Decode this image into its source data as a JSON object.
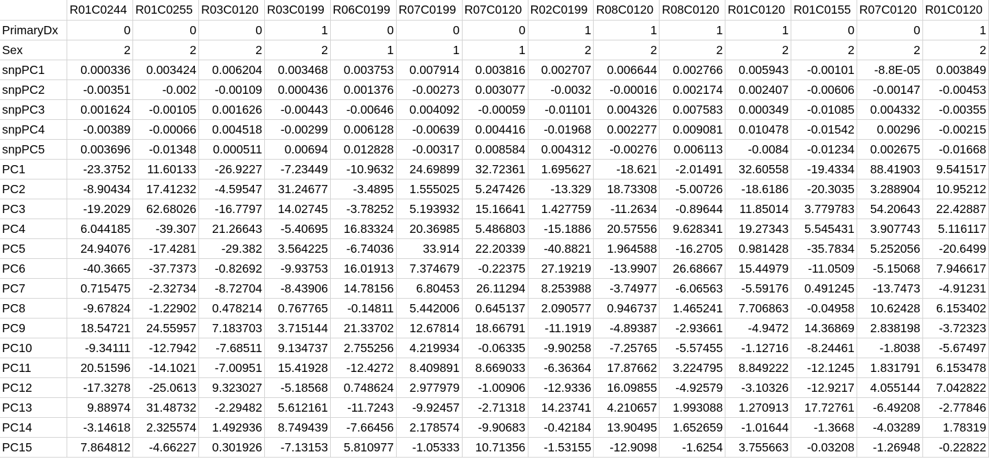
{
  "sheet": {
    "columns": [
      "R01C0244",
      "R01C0255",
      "R03C0120",
      "R03C0199",
      "R06C0199",
      "R07C0199",
      "R07C0120",
      "R02C0199",
      "R08C0120",
      "R08C0120",
      "R01C0120",
      "R01C0155",
      "R07C0120",
      "R01C0120"
    ],
    "rows": [
      {
        "label": "PrimaryDx",
        "values": [
          "0",
          "0",
          "0",
          "1",
          "0",
          "0",
          "0",
          "1",
          "1",
          "1",
          "1",
          "0",
          "0",
          "1"
        ]
      },
      {
        "label": "Sex",
        "values": [
          "2",
          "2",
          "2",
          "2",
          "1",
          "1",
          "1",
          "2",
          "2",
          "2",
          "2",
          "2",
          "2",
          "2"
        ]
      },
      {
        "label": "snpPC1",
        "values": [
          "0.000336",
          "0.003424",
          "0.006204",
          "0.003468",
          "0.003753",
          "0.007914",
          "0.003816",
          "0.002707",
          "0.006644",
          "0.002766",
          "0.005943",
          "-0.00101",
          "-8.8E-05",
          "0.003849"
        ]
      },
      {
        "label": "snpPC2",
        "values": [
          "-0.00351",
          "-0.002",
          "-0.00109",
          "0.000436",
          "0.001376",
          "-0.00273",
          "0.003077",
          "-0.0032",
          "-0.00016",
          "0.002174",
          "0.002407",
          "-0.00606",
          "-0.00147",
          "-0.00453"
        ]
      },
      {
        "label": "snpPC3",
        "values": [
          "0.001624",
          "-0.00105",
          "0.001626",
          "-0.00443",
          "-0.00646",
          "0.004092",
          "-0.00059",
          "-0.01101",
          "0.004326",
          "0.007583",
          "0.000349",
          "-0.01085",
          "0.004332",
          "-0.00355"
        ]
      },
      {
        "label": "snpPC4",
        "values": [
          "-0.00389",
          "-0.00066",
          "0.004518",
          "-0.00299",
          "0.006128",
          "-0.00639",
          "0.004416",
          "-0.01968",
          "0.002277",
          "0.009081",
          "0.010478",
          "-0.01542",
          "0.00296",
          "-0.00215"
        ]
      },
      {
        "label": "snpPC5",
        "values": [
          "0.003696",
          "-0.01348",
          "0.000511",
          "0.00694",
          "0.012828",
          "-0.00317",
          "0.008584",
          "0.004312",
          "-0.00276",
          "0.006113",
          "-0.0084",
          "-0.01234",
          "0.002675",
          "-0.01668"
        ]
      },
      {
        "label": "PC1",
        "values": [
          "-23.3752",
          "11.60133",
          "-26.9227",
          "-7.23449",
          "-10.9632",
          "24.69899",
          "32.72361",
          "1.695627",
          "-18.621",
          "-2.01491",
          "32.60558",
          "-19.4334",
          "88.41903",
          "9.541517"
        ]
      },
      {
        "label": "PC2",
        "values": [
          "-8.90434",
          "17.41232",
          "-4.59547",
          "31.24677",
          "-3.4895",
          "1.555025",
          "5.247426",
          "-13.329",
          "18.73308",
          "-5.00726",
          "-18.6186",
          "-20.3035",
          "3.288904",
          "10.95212"
        ]
      },
      {
        "label": "PC3",
        "values": [
          "-19.2029",
          "62.68026",
          "-16.7797",
          "14.02745",
          "-3.78252",
          "5.193932",
          "15.16641",
          "1.427759",
          "-11.2634",
          "-0.89644",
          "11.85014",
          "3.779783",
          "54.20643",
          "22.42887"
        ]
      },
      {
        "label": "PC4",
        "values": [
          "6.044185",
          "-39.307",
          "21.26643",
          "-5.40695",
          "16.83324",
          "20.36985",
          "5.486803",
          "-15.1886",
          "20.57556",
          "9.628341",
          "19.27343",
          "5.545431",
          "3.907743",
          "5.116117"
        ]
      },
      {
        "label": "PC5",
        "values": [
          "24.94076",
          "-17.4281",
          "-29.382",
          "3.564225",
          "-6.74036",
          "33.914",
          "22.20339",
          "-40.8821",
          "1.964588",
          "-16.2705",
          "0.981428",
          "-35.7834",
          "5.252056",
          "-20.6499"
        ]
      },
      {
        "label": "PC6",
        "values": [
          "-40.3665",
          "-37.7373",
          "-0.82692",
          "-9.93753",
          "16.01913",
          "7.374679",
          "-0.22375",
          "27.19219",
          "-13.9907",
          "26.68667",
          "15.44979",
          "-11.0509",
          "-5.15068",
          "7.946617"
        ]
      },
      {
        "label": "PC7",
        "values": [
          "0.715475",
          "-2.32734",
          "-8.72704",
          "-8.43906",
          "14.78156",
          "6.80453",
          "26.11294",
          "8.253988",
          "-3.74977",
          "-6.06563",
          "-5.59176",
          "0.491245",
          "-13.7473",
          "-4.91231"
        ]
      },
      {
        "label": "PC8",
        "values": [
          "-9.67824",
          "-1.22902",
          "0.478214",
          "0.767765",
          "-0.14811",
          "5.442006",
          "0.645137",
          "2.090577",
          "0.946737",
          "1.465241",
          "7.706863",
          "-0.04958",
          "10.62428",
          "6.153402"
        ]
      },
      {
        "label": "PC9",
        "values": [
          "18.54721",
          "24.55957",
          "7.183703",
          "3.715144",
          "21.33702",
          "12.67814",
          "18.66791",
          "-11.1919",
          "-4.89387",
          "-2.93661",
          "-4.9472",
          "14.36869",
          "2.838198",
          "-3.72323"
        ]
      },
      {
        "label": "PC10",
        "values": [
          "-9.34111",
          "-12.7942",
          "-7.68511",
          "9.134737",
          "2.755256",
          "4.219934",
          "-0.06335",
          "-9.90258",
          "-7.25765",
          "-5.57455",
          "-1.12716",
          "-8.24461",
          "-1.8038",
          "-5.67497"
        ]
      },
      {
        "label": "PC11",
        "values": [
          "20.51596",
          "-14.1021",
          "-7.00951",
          "15.41928",
          "-12.4272",
          "8.409891",
          "8.669033",
          "-6.36364",
          "17.87662",
          "3.224795",
          "8.849222",
          "-12.1245",
          "1.831791",
          "6.153478"
        ]
      },
      {
        "label": "PC12",
        "values": [
          "-17.3278",
          "-25.0613",
          "9.323027",
          "-5.18568",
          "0.748624",
          "2.977979",
          "-1.00906",
          "-12.9336",
          "16.09855",
          "-4.92579",
          "-3.10326",
          "-12.9217",
          "4.055144",
          "7.042822"
        ]
      },
      {
        "label": "PC13",
        "values": [
          "9.88974",
          "31.48732",
          "-2.29482",
          "5.612161",
          "-11.7243",
          "-9.92457",
          "-2.71318",
          "14.23741",
          "4.210657",
          "1.993088",
          "1.270913",
          "17.72761",
          "-6.49208",
          "-2.77846"
        ]
      },
      {
        "label": "PC14",
        "values": [
          "-3.14618",
          "2.325574",
          "1.492936",
          "8.749439",
          "-7.66456",
          "2.178574",
          "-9.90683",
          "-0.42184",
          "13.90495",
          "1.652659",
          "-1.01644",
          "-1.3668",
          "-4.03289",
          "1.78319"
        ]
      },
      {
        "label": "PC15",
        "values": [
          "7.864812",
          "-4.66227",
          "0.301926",
          "-7.13153",
          "5.810977",
          "-1.05333",
          "10.71356",
          "-1.53155",
          "-12.9098",
          "-1.6254",
          "3.755663",
          "-0.03208",
          "-1.26948",
          "-0.22822"
        ]
      }
    ]
  }
}
